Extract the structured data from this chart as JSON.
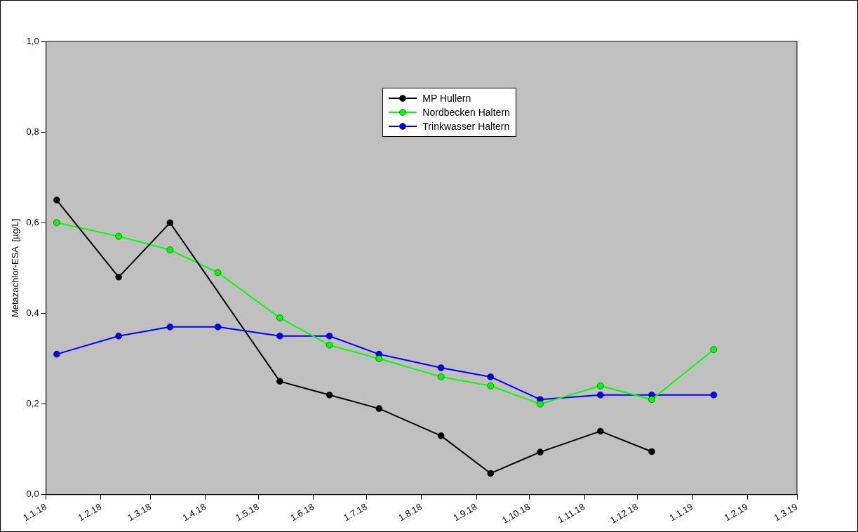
{
  "chart_data": {
    "type": "line",
    "ylabel": "Metazachlor-ESA  [µg/L]",
    "x": [
      "2018-01-07",
      "2018-02-11",
      "2018-03-12",
      "2018-04-08",
      "2018-05-13",
      "2018-06-10",
      "2018-07-08",
      "2018-08-12",
      "2018-09-09",
      "2018-10-07",
      "2018-11-10",
      "2018-12-09",
      "2019-01-13"
    ],
    "series": [
      {
        "name": "MP Hullern",
        "color": "#000000",
        "values": [
          0.65,
          0.48,
          0.6,
          null,
          0.25,
          0.22,
          0.19,
          0.13,
          0.047,
          0.094,
          0.14,
          0.095,
          null
        ]
      },
      {
        "name": "Nordbecken Haltern",
        "color": "#00ff00",
        "values": [
          0.6,
          0.57,
          0.54,
          0.49,
          0.39,
          0.33,
          0.3,
          0.26,
          0.24,
          0.2,
          0.24,
          0.21,
          0.32
        ]
      },
      {
        "name": "Trinkwasser Haltern",
        "color": "#0000ff",
        "values": [
          0.31,
          0.35,
          0.37,
          0.37,
          0.35,
          0.35,
          0.31,
          0.28,
          0.26,
          0.21,
          0.22,
          0.22,
          0.22
        ]
      }
    ],
    "xlim": [
      "2018-01-01",
      "2019-03-01"
    ],
    "xticks": [
      {
        "value": "2018-01-01",
        "label": "1.1.18"
      },
      {
        "value": "2018-02-01",
        "label": "1.2.18"
      },
      {
        "value": "2018-03-01",
        "label": "1.3.18"
      },
      {
        "value": "2018-04-01",
        "label": "1.4.18"
      },
      {
        "value": "2018-05-01",
        "label": "1.5.18"
      },
      {
        "value": "2018-06-01",
        "label": "1.6.18"
      },
      {
        "value": "2018-07-01",
        "label": "1.7.18"
      },
      {
        "value": "2018-08-01",
        "label": "1.8.18"
      },
      {
        "value": "2018-09-01",
        "label": "1.9.18"
      },
      {
        "value": "2018-10-01",
        "label": "1.10.18"
      },
      {
        "value": "2018-11-01",
        "label": "1.11.18"
      },
      {
        "value": "2018-12-01",
        "label": "1.12.18"
      },
      {
        "value": "2019-01-01",
        "label": "1.1.19"
      },
      {
        "value": "2019-02-01",
        "label": "1.2.19"
      },
      {
        "value": "2019-03-01",
        "label": "1.3.19"
      }
    ],
    "ylim": [
      0,
      1
    ],
    "yticks": [
      {
        "value": 0,
        "label": "0,0"
      },
      {
        "value": 0.2,
        "label": "0,2"
      },
      {
        "value": 0.4,
        "label": "0,4"
      },
      {
        "value": 0.6,
        "label": "0,6"
      },
      {
        "value": 0.8,
        "label": "0,8"
      },
      {
        "value": 1,
        "label": "1,0"
      }
    ],
    "grid": false,
    "legend": "top",
    "marker": "circle",
    "line_style": "solid"
  }
}
